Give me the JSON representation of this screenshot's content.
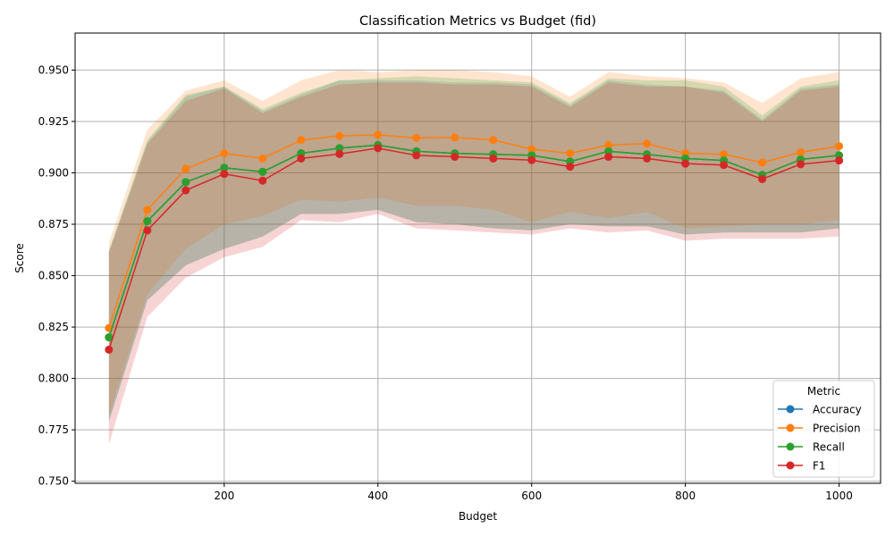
{
  "chart_data": {
    "type": "line",
    "title": "Classification Metrics vs Budget (fid)",
    "xlabel": "Budget",
    "ylabel": "Score",
    "xlim": [
      6,
      1054
    ],
    "ylim": [
      0.749,
      0.968
    ],
    "xticks": [
      200,
      400,
      600,
      800,
      1000
    ],
    "yticks": [
      0.75,
      0.775,
      0.8,
      0.825,
      0.85,
      0.875,
      0.9,
      0.925,
      0.95
    ],
    "ytick_labels": [
      "0.750",
      "0.775",
      "0.800",
      "0.825",
      "0.850",
      "0.875",
      "0.900",
      "0.925",
      "0.950"
    ],
    "grid": true,
    "legend": {
      "title": "Metric",
      "placement": "lower-right"
    },
    "x": [
      50,
      100,
      150,
      200,
      250,
      300,
      350,
      400,
      450,
      500,
      550,
      600,
      650,
      700,
      750,
      800,
      850,
      900,
      950,
      1000
    ],
    "series": [
      {
        "name": "Accuracy",
        "color": "#1f77b4",
        "values": [
          0.82,
          0.8765,
          0.8955,
          0.9025,
          0.9005,
          0.9095,
          0.912,
          0.9135,
          0.9105,
          0.9095,
          0.909,
          0.9085,
          0.9055,
          0.9105,
          0.909,
          0.907,
          0.906,
          0.899,
          0.9065,
          0.9085
        ],
        "lower": [
          0.779,
          0.838,
          0.855,
          0.863,
          0.869,
          0.88,
          0.88,
          0.882,
          0.876,
          0.875,
          0.873,
          0.872,
          0.875,
          0.874,
          0.874,
          0.87,
          0.871,
          0.871,
          0.871,
          0.873
        ],
        "upper": [
          0.862,
          0.915,
          0.937,
          0.942,
          0.93,
          0.938,
          0.945,
          0.945,
          0.945,
          0.944,
          0.944,
          0.943,
          0.933,
          0.945,
          0.943,
          0.942,
          0.94,
          0.926,
          0.941,
          0.943
        ]
      },
      {
        "name": "Precision",
        "color": "#ff7f0e",
        "values": [
          0.8245,
          0.882,
          0.902,
          0.9095,
          0.907,
          0.916,
          0.918,
          0.9185,
          0.917,
          0.9172,
          0.916,
          0.9115,
          0.9095,
          0.9135,
          0.9142,
          0.9095,
          0.909,
          0.905,
          0.91,
          0.913
        ],
        "lower": [
          0.782,
          0.841,
          0.863,
          0.875,
          0.879,
          0.887,
          0.886,
          0.888,
          0.884,
          0.884,
          0.882,
          0.876,
          0.881,
          0.878,
          0.881,
          0.873,
          0.874,
          0.875,
          0.875,
          0.877
        ],
        "upper": [
          0.866,
          0.921,
          0.94,
          0.945,
          0.935,
          0.945,
          0.95,
          0.949,
          0.95,
          0.95,
          0.949,
          0.947,
          0.937,
          0.949,
          0.947,
          0.946,
          0.944,
          0.934,
          0.946,
          0.949
        ]
      },
      {
        "name": "Recall",
        "color": "#2ca02c",
        "values": [
          0.82,
          0.8765,
          0.8955,
          0.9025,
          0.9005,
          0.9095,
          0.912,
          0.9135,
          0.9105,
          0.9095,
          0.909,
          0.9085,
          0.9055,
          0.9105,
          0.909,
          0.907,
          0.906,
          0.899,
          0.9065,
          0.9085
        ],
        "lower": [
          0.779,
          0.838,
          0.855,
          0.863,
          0.869,
          0.88,
          0.88,
          0.882,
          0.876,
          0.875,
          0.873,
          0.872,
          0.875,
          0.874,
          0.874,
          0.87,
          0.871,
          0.871,
          0.871,
          0.873
        ],
        "upper": [
          0.862,
          0.916,
          0.938,
          0.942,
          0.931,
          0.939,
          0.945,
          0.946,
          0.947,
          0.946,
          0.945,
          0.944,
          0.934,
          0.946,
          0.945,
          0.945,
          0.942,
          0.928,
          0.942,
          0.945
        ]
      },
      {
        "name": "F1",
        "color": "#d62728",
        "values": [
          0.814,
          0.872,
          0.8915,
          0.8995,
          0.8962,
          0.907,
          0.9092,
          0.912,
          0.9085,
          0.9078,
          0.907,
          0.9062,
          0.903,
          0.9078,
          0.907,
          0.9045,
          0.9038,
          0.897,
          0.9042,
          0.906
        ],
        "lower": [
          0.768,
          0.83,
          0.849,
          0.859,
          0.864,
          0.877,
          0.876,
          0.88,
          0.873,
          0.872,
          0.871,
          0.87,
          0.873,
          0.871,
          0.872,
          0.867,
          0.868,
          0.868,
          0.868,
          0.869
        ],
        "upper": [
          0.861,
          0.914,
          0.935,
          0.941,
          0.929,
          0.937,
          0.943,
          0.944,
          0.944,
          0.943,
          0.943,
          0.942,
          0.932,
          0.944,
          0.942,
          0.942,
          0.939,
          0.925,
          0.94,
          0.942
        ]
      }
    ]
  }
}
